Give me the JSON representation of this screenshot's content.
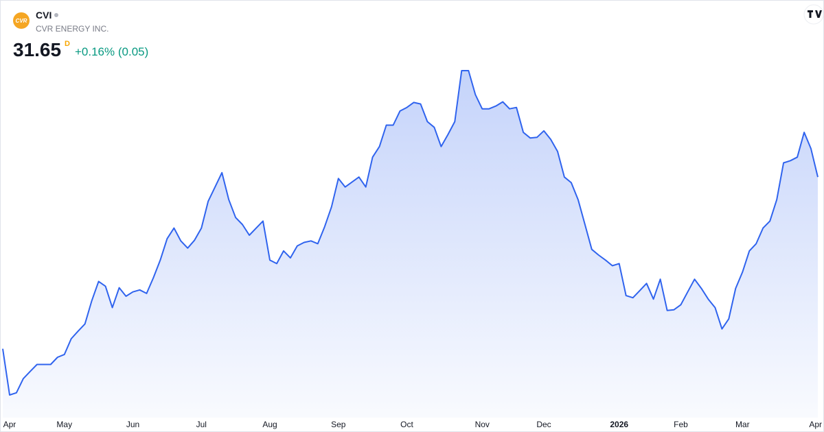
{
  "header": {
    "logo_text": "CVR",
    "symbol": "CVI",
    "company": "CVR ENERGY INC.",
    "price": "31.65",
    "interval": "D",
    "change": "+0.16% (0.05)"
  },
  "chart_data": {
    "type": "area",
    "color": "#2f63ee",
    "categories": [
      null,
      "Apr",
      null,
      null,
      null,
      null,
      null,
      null,
      null,
      "May",
      null,
      null,
      null,
      null,
      null,
      null,
      null,
      null,
      null,
      "Jun",
      null,
      null,
      null,
      null,
      null,
      null,
      null,
      null,
      null,
      "Jul",
      null,
      null,
      null,
      null,
      null,
      null,
      null,
      null,
      null,
      "Aug",
      null,
      null,
      null,
      null,
      null,
      null,
      null,
      null,
      null,
      "Sep",
      null,
      null,
      null,
      null,
      null,
      null,
      null,
      null,
      null,
      "Oct",
      null,
      null,
      null,
      null,
      null,
      null,
      null,
      null,
      null,
      null,
      "Nov",
      null,
      null,
      null,
      null,
      null,
      null,
      null,
      null,
      "Dec",
      null,
      null,
      null,
      null,
      null,
      null,
      null,
      null,
      null,
      null,
      "2026",
      null,
      null,
      null,
      null,
      null,
      null,
      null,
      null,
      "Feb",
      null,
      null,
      null,
      null,
      null,
      null,
      null,
      null,
      "Mar",
      null,
      null,
      null,
      null,
      null,
      null,
      null,
      null,
      null,
      null,
      "Apr"
    ],
    "values": [
      21.35,
      18.58,
      18.71,
      19.56,
      19.99,
      20.41,
      20.41,
      20.41,
      20.84,
      21.01,
      21.95,
      22.41,
      22.84,
      24.24,
      25.39,
      25.1,
      23.82,
      25.01,
      24.5,
      24.76,
      24.88,
      24.67,
      25.61,
      26.67,
      27.95,
      28.59,
      27.82,
      27.39,
      27.86,
      28.59,
      30.2,
      31.05,
      31.91,
      30.29,
      29.22,
      28.8,
      28.16,
      28.59,
      29.01,
      26.67,
      26.46,
      27.22,
      26.8,
      27.52,
      27.73,
      27.82,
      27.65,
      28.67,
      29.86,
      31.56,
      31.05,
      31.35,
      31.65,
      31.05,
      32.84,
      33.48,
      34.76,
      34.76,
      35.61,
      35.82,
      36.12,
      36.03,
      34.97,
      34.63,
      33.48,
      34.2,
      34.97,
      38.03,
      38.03,
      36.59,
      35.74,
      35.74,
      35.91,
      36.16,
      35.74,
      35.82,
      34.33,
      33.99,
      34.03,
      34.42,
      33.91,
      33.18,
      31.65,
      31.31,
      30.29,
      28.8,
      27.31,
      26.97,
      26.67,
      26.33,
      26.46,
      24.54,
      24.41,
      24.84,
      25.27,
      24.33,
      25.52,
      23.65,
      23.69,
      23.99,
      24.76,
      25.52,
      24.97,
      24.33,
      23.82,
      22.54,
      23.14,
      24.97,
      25.95,
      27.22,
      27.65,
      28.59,
      29.01,
      30.29,
      32.5,
      32.63,
      32.84,
      34.33,
      33.35,
      31.65
    ]
  }
}
